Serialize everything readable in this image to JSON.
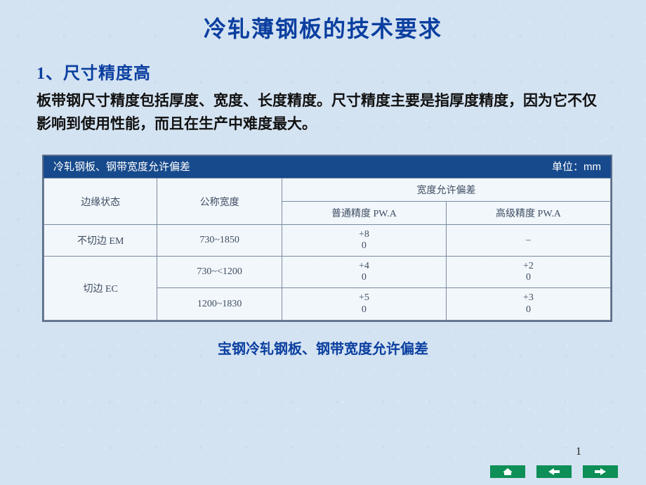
{
  "title": {
    "text": "冷轧薄钢板的技术要求",
    "color": "#0b3fa0",
    "fontsize": 32
  },
  "section": {
    "num": "1",
    "heading": "、尺寸精度高",
    "heading_color": "#0b3fa0",
    "heading_fontsize": 24,
    "body": "板带钢尺寸精度包括厚度、宽度、长度精度。尺寸精度主要是指厚度精度，因为它不仅影响到使用性能，而且在生产中难度最大。",
    "body_color": "#111111",
    "body_fontsize": 21
  },
  "table": {
    "header_bg": "#174a8c",
    "header_color": "#ffffff",
    "header_left": "冷轧钢板、钢带宽度允许偏差",
    "header_right": "单位：mm",
    "header_fontsize": 15,
    "cell_fontsize": 14,
    "col_headers": {
      "edge": "边缘状态",
      "nominal": "公称宽度",
      "tol_group": "宽度允许偏差",
      "tol_normal": "普通精度 PW.A",
      "tol_high": "高级精度 PW.A"
    },
    "rows": [
      {
        "edge": "不切边 EM",
        "nominal": "730~1850",
        "normal_top": "+8",
        "normal_bot": "0",
        "high_top": "–",
        "high_bot": ""
      },
      {
        "edge": "切边 EC",
        "nominal": "730~<1200",
        "normal_top": "+4",
        "normal_bot": "0",
        "high_top": "+2",
        "high_bot": "0"
      },
      {
        "edge": "",
        "nominal": "1200~1830",
        "normal_top": "+5",
        "normal_bot": "0",
        "high_top": "+3",
        "high_bot": "0"
      }
    ],
    "col_widths": [
      "20%",
      "22%",
      "29%",
      "29%"
    ]
  },
  "caption": {
    "text": "宝钢冷轧钢板、钢带宽度允许偏差",
    "color": "#0b3fa0",
    "fontsize": 20
  },
  "page_number": "1",
  "nav": {
    "home": "home",
    "prev": "prev",
    "next": "next",
    "btn_bg": "#0d8f57"
  }
}
